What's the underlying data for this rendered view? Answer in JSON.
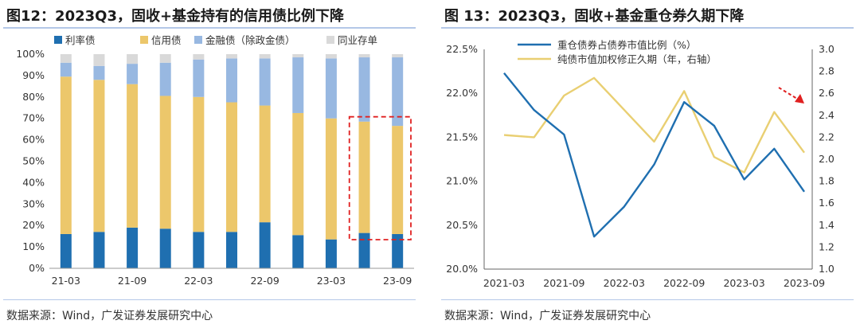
{
  "left": {
    "title": "图12：2023Q3，固收+基金持有的信用债比例下降",
    "source": "数据来源：Wind，广发证券发展研究中心"
  },
  "right": {
    "title": "图 13：2023Q3，固收+基金重仓券久期下降",
    "source": "数据来源：Wind，广发证券发展研究中心"
  },
  "chart_data": [
    {
      "type": "bar",
      "stacked": true,
      "categories": [
        "21-03",
        "21-06",
        "21-09",
        "21-12",
        "22-03",
        "22-06",
        "22-09",
        "22-12",
        "23-03",
        "23-06",
        "23-09"
      ],
      "x_tick_labels": [
        "21-03",
        "21-09",
        "22-03",
        "22-09",
        "23-03",
        "23-09"
      ],
      "series": [
        {
          "name": "利率债",
          "color": "#1f6fb0",
          "values": [
            16,
            17,
            19,
            18.5,
            17,
            17,
            21.5,
            15.5,
            13.5,
            16.5,
            16
          ]
        },
        {
          "name": "信用债",
          "color": "#ecc76b",
          "values": [
            73.5,
            71,
            67,
            62,
            63,
            60.5,
            54.5,
            57,
            56.5,
            52,
            50.5
          ]
        },
        {
          "name": "金融债（除政金债）",
          "color": "#98b8e1",
          "values": [
            6.5,
            6.5,
            9.5,
            15.5,
            17.5,
            20.5,
            22,
            26,
            28,
            30,
            32
          ]
        },
        {
          "name": "同业存单",
          "color": "#d9d9d9",
          "values": [
            4,
            5.5,
            4.5,
            4,
            2.5,
            2,
            2,
            1.5,
            2,
            1.5,
            1.5
          ]
        }
      ],
      "y_ticks": [
        "0%",
        "10%",
        "20%",
        "30%",
        "40%",
        "50%",
        "60%",
        "70%",
        "80%",
        "90%",
        "100%"
      ],
      "ylim": [
        0,
        100
      ],
      "legend_position": "top",
      "annotation": {
        "type": "dashed-box",
        "covers": [
          "23-06",
          "23-09"
        ],
        "range": [
          0,
          70
        ],
        "color": "#e02020"
      }
    },
    {
      "type": "line",
      "x": [
        "2021-03",
        "2021-06",
        "2021-09",
        "2021-12",
        "2022-03",
        "2022-06",
        "2022-09",
        "2022-12",
        "2023-03",
        "2023-06",
        "2023-09"
      ],
      "x_tick_labels": [
        "2021-03",
        "2021-09",
        "2022-03",
        "2022-09",
        "2023-03",
        "2023-09"
      ],
      "series": [
        {
          "name": "重仓债券占债券市值比例（%）",
          "axis": "left",
          "color": "#1f6fb0",
          "values": [
            22.23,
            21.81,
            21.53,
            20.37,
            20.71,
            21.19,
            21.9,
            21.63,
            21.02,
            21.37,
            20.88
          ]
        },
        {
          "name": "纯债市值加权修正久期（年，右轴）",
          "axis": "right",
          "color": "#e9cf72",
          "values": [
            2.22,
            2.2,
            2.58,
            2.74,
            2.45,
            2.16,
            2.62,
            2.02,
            1.88,
            2.43,
            2.06
          ]
        }
      ],
      "y_left_ticks": [
        "20.0%",
        "20.5%",
        "21.0%",
        "21.5%",
        "22.0%",
        "22.5%"
      ],
      "ylim_left": [
        20.0,
        22.5
      ],
      "y_right_ticks": [
        "1.0",
        "1.2",
        "1.4",
        "1.6",
        "1.8",
        "2.0",
        "2.2",
        "2.4",
        "2.6",
        "2.8",
        "3.0"
      ],
      "ylim_right": [
        1.0,
        3.0
      ],
      "legend_position": "top-left",
      "annotation": {
        "type": "dashed-arrow",
        "direction": "down-right",
        "color": "#e02020"
      }
    }
  ]
}
